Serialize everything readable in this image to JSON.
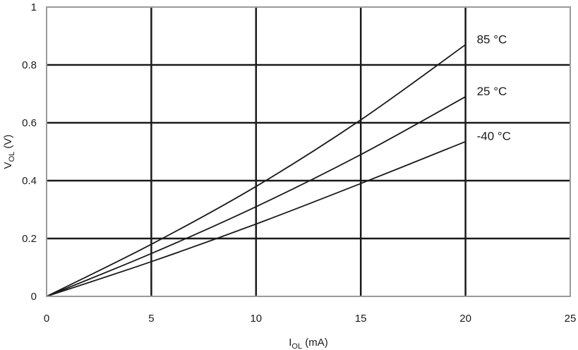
{
  "chart_data": {
    "type": "line",
    "xlabel": {
      "main": "I",
      "sub": "OL",
      "unit": " (mA)"
    },
    "ylabel": {
      "main": "V",
      "sub": "OL",
      "unit": " (V)"
    },
    "xlim": [
      0,
      25
    ],
    "ylim": [
      0,
      1
    ],
    "x_ticks": [
      0,
      5,
      10,
      15,
      20,
      25
    ],
    "x_tick_labels": [
      "0",
      "5",
      "10",
      "15",
      "20",
      "25"
    ],
    "y_ticks": [
      0,
      0.2,
      0.4,
      0.6,
      0.8,
      1
    ],
    "y_tick_labels": [
      "0",
      "0.2",
      "0.4",
      "0.6",
      "0.8",
      "1"
    ],
    "grid": true,
    "series": [
      {
        "name": "85 °C",
        "x": [
          0,
          5,
          10,
          15,
          20
        ],
        "y": [
          0,
          0.18,
          0.38,
          0.61,
          0.87
        ]
      },
      {
        "name": "25 °C",
        "x": [
          0,
          5,
          10,
          15,
          20
        ],
        "y": [
          0,
          0.148,
          0.31,
          0.49,
          0.69
        ]
      },
      {
        "name": "-40 °C",
        "x": [
          0,
          5,
          10,
          15,
          20
        ],
        "y": [
          0,
          0.12,
          0.25,
          0.39,
          0.535
        ]
      }
    ]
  }
}
